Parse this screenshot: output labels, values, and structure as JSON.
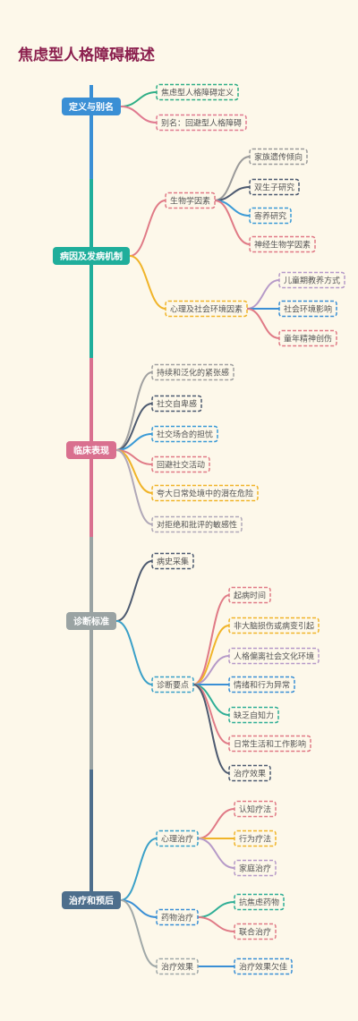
{
  "title": "焦虑型人格障碍概述",
  "branches": [
    {
      "label": "定义与别名",
      "children": [
        {
          "label": "焦虑型人格障碍定义"
        },
        {
          "label": "别名：回避型人格障碍"
        }
      ]
    },
    {
      "label": "病因及发病机制",
      "children": [
        {
          "label": "生物学因素",
          "children": [
            {
              "label": "家族遗传倾向"
            },
            {
              "label": "双生子研究"
            },
            {
              "label": "寄养研究"
            },
            {
              "label": "神经生物学因素"
            }
          ]
        },
        {
          "label": "心理及社会环境因素",
          "children": [
            {
              "label": "儿童期教养方式"
            },
            {
              "label": "社会环境影响"
            },
            {
              "label": "童年精神创伤"
            }
          ]
        }
      ]
    },
    {
      "label": "临床表现",
      "children": [
        {
          "label": "持续和泛化的紧张感"
        },
        {
          "label": "社交自卑感"
        },
        {
          "label": "社交场合的担忧"
        },
        {
          "label": "回避社交活动"
        },
        {
          "label": "夸大日常处境中的潜在危险"
        },
        {
          "label": "对拒绝和批评的敏感性"
        }
      ]
    },
    {
      "label": "诊断标准",
      "children": [
        {
          "label": "病史采集"
        },
        {
          "label": "诊断要点",
          "children": [
            {
              "label": "起病时间"
            },
            {
              "label": "非大脑损伤或病变引起"
            },
            {
              "label": "人格偏离社会文化环境"
            },
            {
              "label": "情绪和行为异常"
            },
            {
              "label": "缺乏自知力"
            },
            {
              "label": "日常生活和工作影响"
            },
            {
              "label": "治疗效果"
            }
          ]
        }
      ]
    },
    {
      "label": "治疗和预后",
      "children": [
        {
          "label": "心理治疗",
          "children": [
            {
              "label": "认知疗法"
            },
            {
              "label": "行为疗法"
            },
            {
              "label": "家庭治疗"
            }
          ]
        },
        {
          "label": "药物治疗",
          "children": [
            {
              "label": "抗焦虑药物"
            },
            {
              "label": "联合治疗"
            }
          ]
        },
        {
          "label": "治疗效果",
          "children": [
            {
              "label": "治疗效果欠佳"
            }
          ]
        }
      ]
    }
  ]
}
